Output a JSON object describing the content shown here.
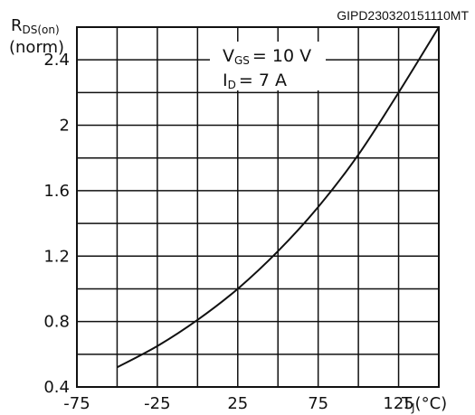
{
  "document_id": "GIPD230320151110MT",
  "chart_data": {
    "type": "line",
    "y_label": {
      "main": "R",
      "sub": "DS(on)",
      "line2": "(norm)"
    },
    "x_label": {
      "main": "T",
      "sub": "J",
      "suffix": "(°C)"
    },
    "conditions": {
      "vgs": {
        "main": "V",
        "sub": "GS",
        "value": "= 10 V"
      },
      "id": {
        "main": "I",
        "sub": "D",
        "value": "= 7 A"
      }
    },
    "xlim": [
      -75,
      150
    ],
    "ylim": [
      0.4,
      2.6
    ],
    "x_ticks": [
      "-75",
      "-25",
      "25",
      "75",
      "125"
    ],
    "x_tick_values": [
      -75,
      -25,
      25,
      75,
      125
    ],
    "y_ticks": [
      "0.4",
      "0.8",
      "1.2",
      "1.6",
      "2",
      "2.4"
    ],
    "y_tick_values": [
      0.4,
      0.8,
      1.2,
      1.6,
      2.0,
      2.4
    ],
    "grid": true,
    "series": [
      {
        "x": [
          -50,
          -25,
          0,
          25,
          50,
          75,
          100,
          125,
          150
        ],
        "y": [
          0.52,
          0.65,
          0.81,
          1.0,
          1.23,
          1.5,
          1.82,
          2.2,
          2.6
        ]
      }
    ]
  }
}
